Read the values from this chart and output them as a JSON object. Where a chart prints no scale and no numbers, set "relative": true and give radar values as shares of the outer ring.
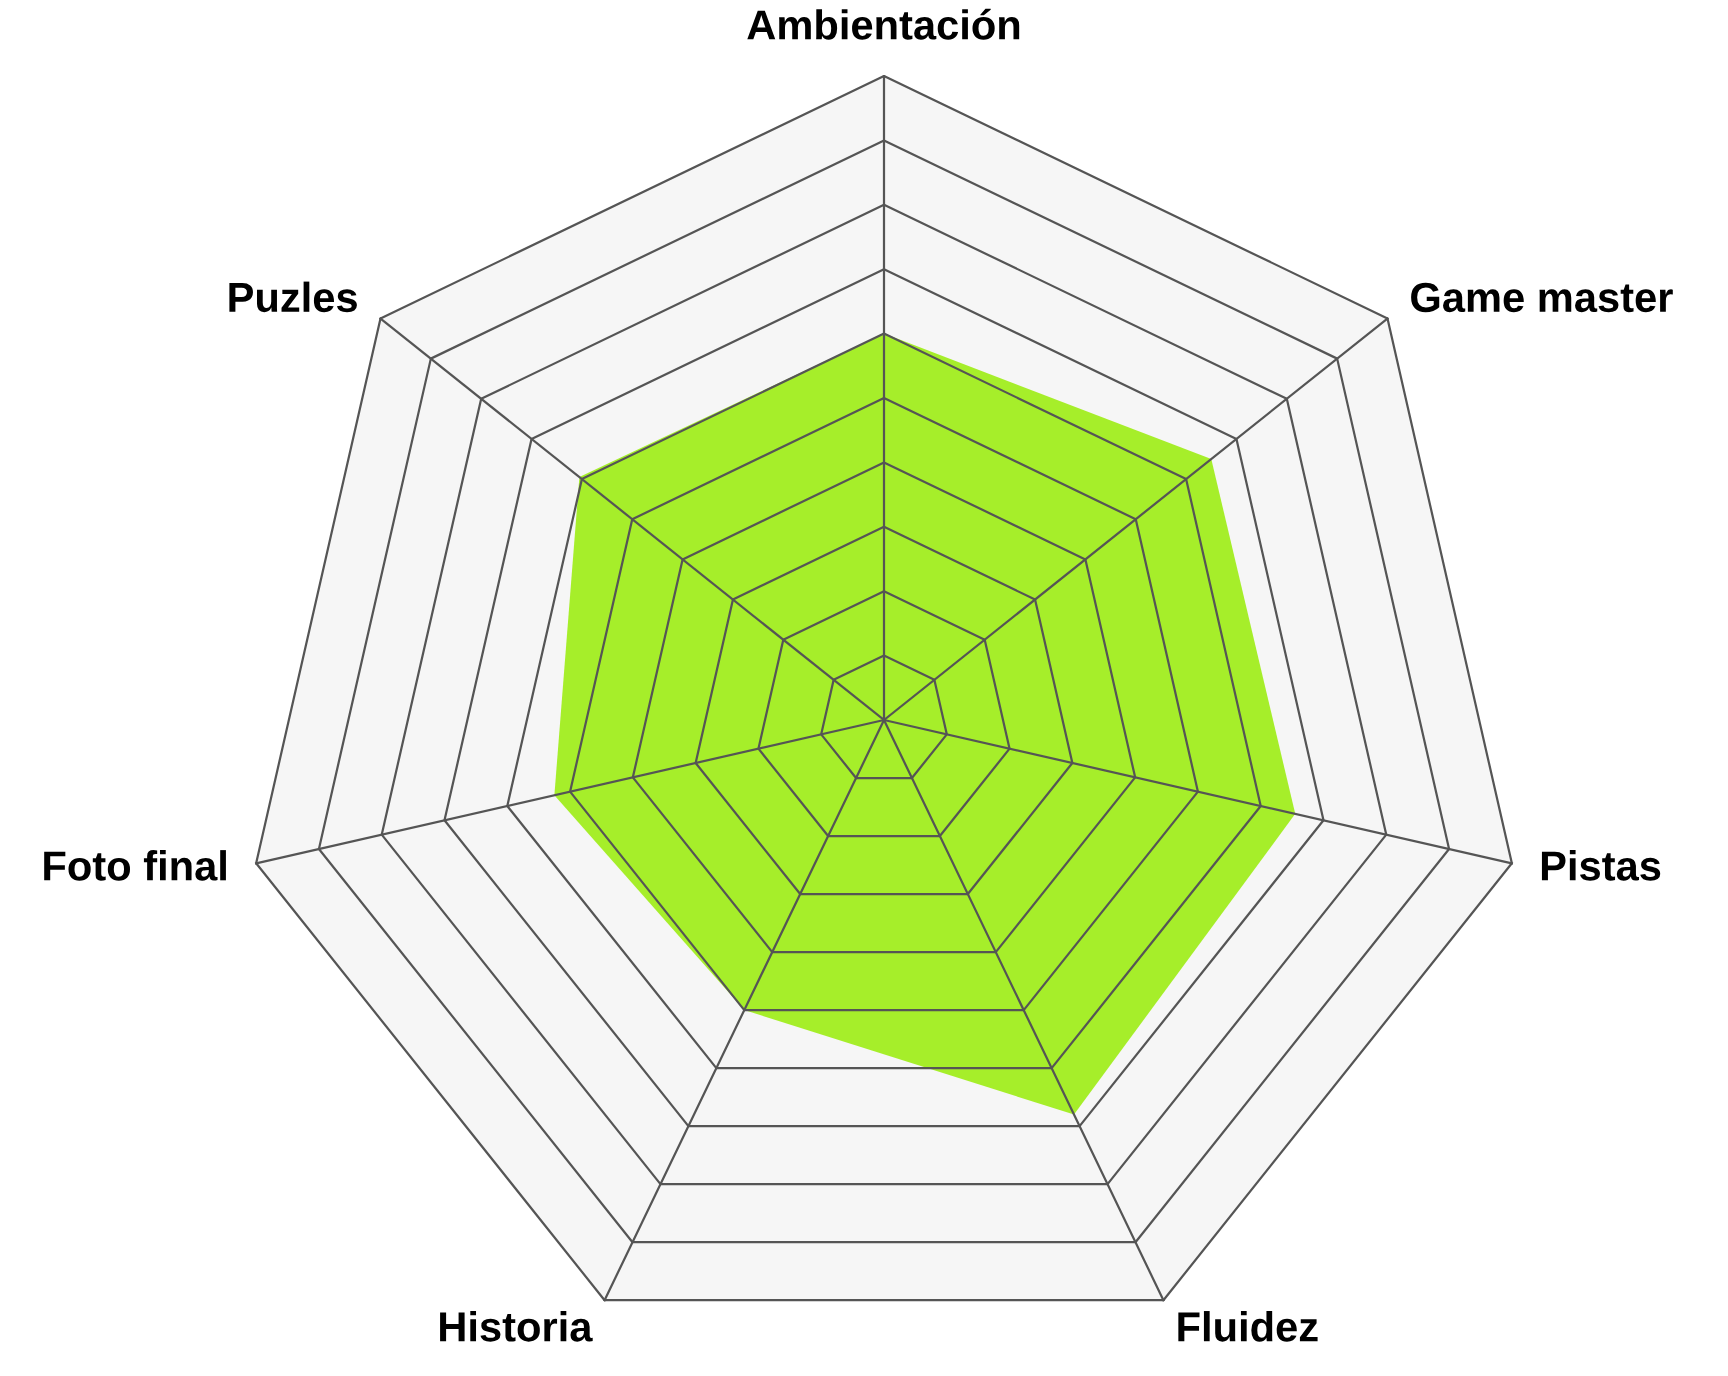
{
  "chart_data": {
    "type": "radar",
    "relative": true,
    "categories": [
      "Ambientación",
      "Game master",
      "Pistas",
      "Fluidez",
      "Historia",
      "Foto final",
      "Puzles"
    ],
    "series": [
      {
        "color": "#a6ee2a",
        "values": [
          0.6,
          0.65,
          0.655,
          0.68,
          0.5,
          0.525,
          0.605
        ]
      }
    ],
    "grid": true
  }
}
